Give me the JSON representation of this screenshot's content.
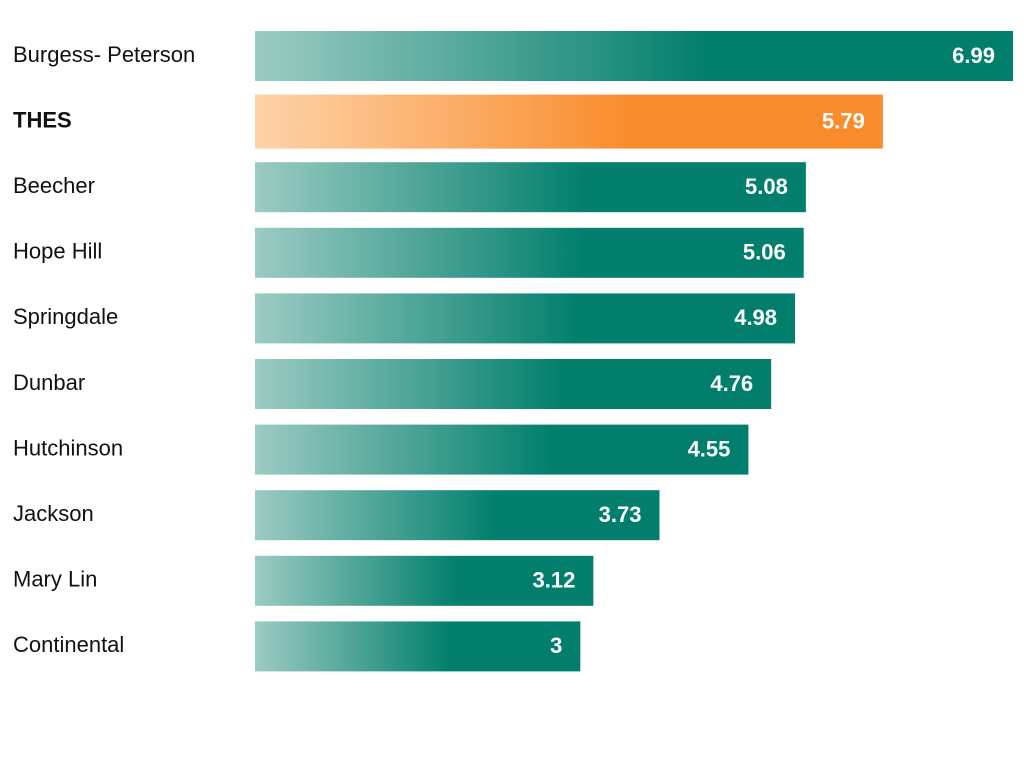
{
  "chart_data": {
    "type": "bar",
    "orientation": "horizontal",
    "categories": [
      "Burgess- Peterson",
      "THES",
      "Beecher",
      "Hope Hill",
      "Springdale",
      "Dunbar",
      "Hutchinson",
      "Jackson",
      "Mary Lin",
      "Continental"
    ],
    "values": [
      6.99,
      5.79,
      5.08,
      5.06,
      4.98,
      4.76,
      4.55,
      3.73,
      3.12,
      3
    ],
    "value_labels": [
      "6.99",
      "5.79",
      "5.08",
      "5.06",
      "4.98",
      "4.76",
      "4.55",
      "3.73",
      "3.12",
      "3"
    ],
    "highlight_category": "THES",
    "xlim": [
      0,
      7
    ],
    "grid": false,
    "legend": "none",
    "title": "",
    "xlabel": "",
    "ylabel": "",
    "colors": {
      "bar_start": "#9ccbc3",
      "bar_end": "#017f6c",
      "highlight_start": "#fdd3a9",
      "highlight_end": "#f98c2c",
      "value_text": "#ffffff",
      "category_text": "#111111"
    }
  }
}
